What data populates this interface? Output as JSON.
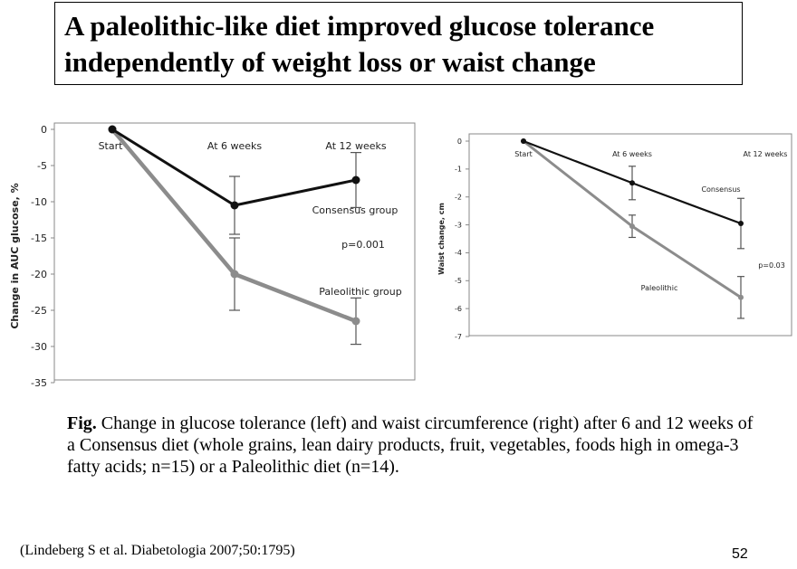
{
  "slide": {
    "title_line1": "A paleolithic-like diet improved glucose tolerance",
    "title_line2": "independently of weight loss or waist change",
    "caption_prefix": "Fig.",
    "caption_text": " Change in glucose tolerance (left) and waist circumference (right) after 6 and 12 weeks of a Consensus diet (whole grains, lean dairy products, fruit, vegetables, foods high in omega-3 fatty acids; n=15) or  a Paleolithic diet (n=14).",
    "citation": "(Lindeberg S et al. Diabetologia 2007;50:1795)",
    "page_number": "52"
  },
  "colors": {
    "consensus": "#111111",
    "paleolithic": "#8c8c8c",
    "error_bar": "#555555",
    "frame": "#888888"
  },
  "chart_data": [
    {
      "type": "line",
      "title": "",
      "xlabel": "",
      "ylabel": "Change in AUC glucose, %",
      "categories": [
        "Start",
        "At 6 weeks",
        "At 12 weeks"
      ],
      "ylim": [
        -35,
        0
      ],
      "yticks": [
        0,
        -5,
        -10,
        -15,
        -20,
        -25,
        -30,
        -35
      ],
      "grid": false,
      "series": [
        {
          "name": "Consensus group",
          "values": [
            0,
            -10.5,
            -7
          ],
          "error": [
            0,
            4,
            3.8
          ]
        },
        {
          "name": "Paleolithic group",
          "values": [
            0,
            -20,
            -26.5
          ],
          "error": [
            0,
            5,
            3.2
          ]
        }
      ],
      "annotations": [
        "p=0.001"
      ]
    },
    {
      "type": "line",
      "title": "",
      "xlabel": "",
      "ylabel": "Waist change, cm",
      "categories": [
        "Start",
        "At 6 weeks",
        "At 12 weeks"
      ],
      "ylim": [
        -7,
        0
      ],
      "yticks": [
        0,
        -1,
        -2,
        -3,
        -4,
        -5,
        -6,
        -7
      ],
      "grid": false,
      "series": [
        {
          "name": "Consensus",
          "values": [
            0,
            -1.5,
            -2.95
          ],
          "error": [
            0,
            0.6,
            0.9
          ]
        },
        {
          "name": "Paleolithic",
          "values": [
            0,
            -3.05,
            -5.6
          ],
          "error": [
            0,
            0.4,
            0.75
          ]
        }
      ],
      "annotations": [
        "p=0.03"
      ]
    }
  ]
}
